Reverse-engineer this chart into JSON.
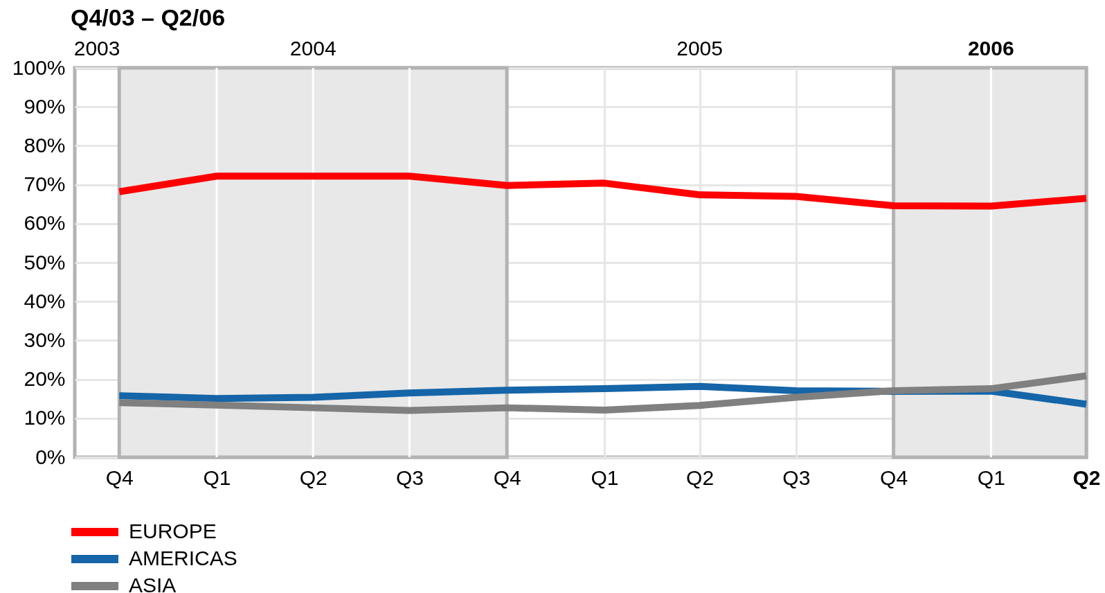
{
  "chart_data": {
    "type": "line",
    "title": "Q4/03 – Q2/06",
    "x": [
      "2003-10",
      "2004-01",
      "2004-04",
      "2004-07",
      "2004-10",
      "2005-01",
      "2005-04",
      "2005-07",
      "2005-10",
      "2006-01",
      "2006-04"
    ],
    "series": [
      {
        "name": "EUROPE",
        "color": "#ff0000",
        "values": [
          68.2,
          72.2,
          72.2,
          72.2,
          69.8,
          70.4,
          67.4,
          67.0,
          64.6,
          64.5,
          66.5
        ]
      },
      {
        "name": "AMERICAS",
        "color": "#1565a8",
        "values": [
          15.8,
          15.1,
          15.4,
          16.5,
          17.2,
          17.6,
          18.2,
          17.1,
          16.9,
          17.0,
          13.6
        ]
      },
      {
        "name": "ASIA",
        "color": "#808080",
        "values": [
          14.0,
          13.4,
          12.7,
          12.0,
          12.7,
          12.1,
          13.3,
          15.4,
          17.1,
          17.6,
          20.9
        ]
      }
    ],
    "xlim": [
      "2003-08-20",
      "2006-04"
    ],
    "xticks": [
      {
        "value": "2003-10",
        "label": "Q4"
      },
      {
        "value": "2004-01",
        "label": "Q1"
      },
      {
        "value": "2004-04",
        "label": "Q2"
      },
      {
        "value": "2004-07",
        "label": "Q3"
      },
      {
        "value": "2004-10",
        "label": "Q4"
      },
      {
        "value": "2005-01",
        "label": "Q1"
      },
      {
        "value": "2005-04",
        "label": "Q2"
      },
      {
        "value": "2005-07",
        "label": "Q3"
      },
      {
        "value": "2005-10",
        "label": "Q4"
      },
      {
        "value": "2006-01",
        "label": "Q1"
      },
      {
        "value": "2006-04",
        "label": "Q2"
      }
    ],
    "x2lim": [
      "2003-08-20",
      "2006-04"
    ],
    "x2ticks": [
      {
        "value": "2003-09-10",
        "label": "2003"
      },
      {
        "value": "2004-04",
        "label": "2004"
      },
      {
        "value": "2005-04",
        "label": "2005"
      },
      {
        "value": "2006-01",
        "label": "2006"
      }
    ],
    "ylim": [
      0,
      100
    ],
    "yticks": [
      {
        "value": 0,
        "label": "0%"
      },
      {
        "value": 10,
        "label": "10%"
      },
      {
        "value": 20,
        "label": "20%"
      },
      {
        "value": 30,
        "label": "30%"
      },
      {
        "value": 40,
        "label": "40%"
      },
      {
        "value": 50,
        "label": "50%"
      },
      {
        "value": 60,
        "label": "60%"
      },
      {
        "value": 70,
        "label": "70%"
      },
      {
        "value": 80,
        "label": "80%"
      },
      {
        "value": 90,
        "label": "90%"
      },
      {
        "value": 100,
        "label": "100%"
      }
    ],
    "bands": [
      {
        "axis": "x",
        "from": "2003-10",
        "to": "2004-10",
        "color": "#e8e8e8"
      },
      {
        "axis": "x",
        "from": "2005-10",
        "to": "2006-04",
        "color": "#e8e8e8"
      }
    ],
    "grid": true,
    "legend": "bottom left"
  }
}
